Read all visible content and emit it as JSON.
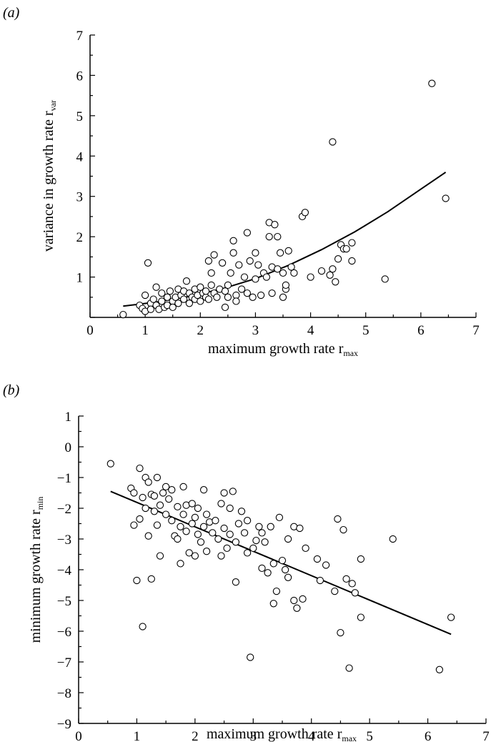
{
  "chart_data": [
    {
      "type": "scatter",
      "panel_label": "(a)",
      "xlabel": "maximum growth rate r",
      "xlabel_sub": "max",
      "ylabel": "variance in growth rate r",
      "ylabel_sub": "var",
      "xlim": [
        0,
        7
      ],
      "ylim": [
        0,
        7
      ],
      "x_ticks": [
        "0",
        "1",
        "2",
        "3",
        "4",
        "5",
        "6",
        "7"
      ],
      "y_ticks": [
        "1",
        "2",
        "3",
        "4",
        "5",
        "6",
        "7"
      ],
      "grid": false,
      "fit_line": {
        "x": [
          0.6,
          1.2,
          1.8,
          2.4,
          3.0,
          3.6,
          4.2,
          4.8,
          5.4,
          6.0,
          6.45
        ],
        "y": [
          0.28,
          0.38,
          0.52,
          0.71,
          0.96,
          1.29,
          1.68,
          2.12,
          2.62,
          3.18,
          3.6
        ]
      },
      "points": [
        [
          0.6,
          0.07
        ],
        [
          0.9,
          0.3
        ],
        [
          0.95,
          0.22
        ],
        [
          1.0,
          0.55
        ],
        [
          1.0,
          0.15
        ],
        [
          1.05,
          1.35
        ],
        [
          1.1,
          0.35
        ],
        [
          1.1,
          0.2
        ],
        [
          1.15,
          0.45
        ],
        [
          1.2,
          0.3
        ],
        [
          1.2,
          0.75
        ],
        [
          1.25,
          0.2
        ],
        [
          1.3,
          0.6
        ],
        [
          1.3,
          0.4
        ],
        [
          1.35,
          0.25
        ],
        [
          1.4,
          0.5
        ],
        [
          1.4,
          0.3
        ],
        [
          1.45,
          0.65
        ],
        [
          1.5,
          0.4
        ],
        [
          1.5,
          0.25
        ],
        [
          1.55,
          0.5
        ],
        [
          1.6,
          0.7
        ],
        [
          1.6,
          0.35
        ],
        [
          1.65,
          0.55
        ],
        [
          1.7,
          0.45
        ],
        [
          1.7,
          0.65
        ],
        [
          1.75,
          0.9
        ],
        [
          1.8,
          0.35
        ],
        [
          1.8,
          0.6
        ],
        [
          1.85,
          0.5
        ],
        [
          1.9,
          0.7
        ],
        [
          1.9,
          0.45
        ],
        [
          1.95,
          0.55
        ],
        [
          2.0,
          0.75
        ],
        [
          2.0,
          0.4
        ],
        [
          2.05,
          0.6
        ],
        [
          2.1,
          0.5
        ],
        [
          2.1,
          0.65
        ],
        [
          2.15,
          1.4
        ],
        [
          2.15,
          0.45
        ],
        [
          2.2,
          0.8
        ],
        [
          2.2,
          1.1
        ],
        [
          2.25,
          1.55
        ],
        [
          2.25,
          0.6
        ],
        [
          2.3,
          0.5
        ],
        [
          2.35,
          0.7
        ],
        [
          2.4,
          1.35
        ],
        [
          2.45,
          0.25
        ],
        [
          2.45,
          0.65
        ],
        [
          2.5,
          0.5
        ],
        [
          2.5,
          0.8
        ],
        [
          2.55,
          1.1
        ],
        [
          2.6,
          1.6
        ],
        [
          2.6,
          1.9
        ],
        [
          2.65,
          0.55
        ],
        [
          2.65,
          0.4
        ],
        [
          2.7,
          1.3
        ],
        [
          2.75,
          0.7
        ],
        [
          2.8,
          1.0
        ],
        [
          2.85,
          2.1
        ],
        [
          2.85,
          0.6
        ],
        [
          2.9,
          1.4
        ],
        [
          2.95,
          0.5
        ],
        [
          3.0,
          1.6
        ],
        [
          3.0,
          0.95
        ],
        [
          3.05,
          1.3
        ],
        [
          3.1,
          0.55
        ],
        [
          3.15,
          1.1
        ],
        [
          3.2,
          1.0
        ],
        [
          3.25,
          2.35
        ],
        [
          3.25,
          2.0
        ],
        [
          3.3,
          1.25
        ],
        [
          3.3,
          0.6
        ],
        [
          3.35,
          2.3
        ],
        [
          3.4,
          2.0
        ],
        [
          3.4,
          1.2
        ],
        [
          3.45,
          1.6
        ],
        [
          3.5,
          0.5
        ],
        [
          3.5,
          1.1
        ],
        [
          3.55,
          0.7
        ],
        [
          3.55,
          0.8
        ],
        [
          3.6,
          1.65
        ],
        [
          3.65,
          1.25
        ],
        [
          3.7,
          1.1
        ],
        [
          3.85,
          2.5
        ],
        [
          3.9,
          2.6
        ],
        [
          4.0,
          1.0
        ],
        [
          4.2,
          1.15
        ],
        [
          4.35,
          1.05
        ],
        [
          4.4,
          1.2
        ],
        [
          4.4,
          4.35
        ],
        [
          4.45,
          0.88
        ],
        [
          4.5,
          1.45
        ],
        [
          4.55,
          1.8
        ],
        [
          4.6,
          1.7
        ],
        [
          4.65,
          1.7
        ],
        [
          4.75,
          1.85
        ],
        [
          4.75,
          1.4
        ],
        [
          5.35,
          0.95
        ],
        [
          6.2,
          5.8
        ],
        [
          6.45,
          2.95
        ]
      ]
    },
    {
      "type": "scatter",
      "panel_label": "(b)",
      "xlabel": "maximum growth rate r",
      "xlabel_sub": "max",
      "ylabel": "minimum growth rate r",
      "ylabel_sub": "min",
      "xlim": [
        0,
        7
      ],
      "ylim": [
        -9,
        1
      ],
      "x_ticks": [
        "0",
        "1",
        "2",
        "3",
        "4",
        "5",
        "6",
        "7"
      ],
      "y_ticks": [
        "−9",
        "−8",
        "−7",
        "−6",
        "−5",
        "−4",
        "−3",
        "−2",
        "−1",
        "0",
        "1"
      ],
      "grid": false,
      "fit_line": {
        "x": [
          0.55,
          6.4
        ],
        "y": [
          -1.45,
          -6.1
        ]
      },
      "points": [
        [
          0.55,
          -0.55
        ],
        [
          0.9,
          -1.35
        ],
        [
          0.95,
          -2.55
        ],
        [
          0.95,
          -1.5
        ],
        [
          1.0,
          -4.35
        ],
        [
          1.05,
          -0.7
        ],
        [
          1.05,
          -2.35
        ],
        [
          1.1,
          -5.85
        ],
        [
          1.1,
          -1.65
        ],
        [
          1.15,
          -1.0
        ],
        [
          1.15,
          -2.0
        ],
        [
          1.2,
          -2.9
        ],
        [
          1.2,
          -1.15
        ],
        [
          1.25,
          -1.55
        ],
        [
          1.25,
          -4.3
        ],
        [
          1.3,
          -2.1
        ],
        [
          1.3,
          -1.6
        ],
        [
          1.35,
          -1.0
        ],
        [
          1.35,
          -2.55
        ],
        [
          1.4,
          -3.55
        ],
        [
          1.4,
          -1.9
        ],
        [
          1.45,
          -1.5
        ],
        [
          1.5,
          -1.3
        ],
        [
          1.5,
          -2.2
        ],
        [
          1.55,
          -1.7
        ],
        [
          1.6,
          -2.4
        ],
        [
          1.6,
          -1.4
        ],
        [
          1.65,
          -2.9
        ],
        [
          1.7,
          -1.95
        ],
        [
          1.7,
          -3.0
        ],
        [
          1.75,
          -3.8
        ],
        [
          1.75,
          -2.6
        ],
        [
          1.8,
          -1.3
        ],
        [
          1.8,
          -2.2
        ],
        [
          1.85,
          -2.75
        ],
        [
          1.85,
          -1.9
        ],
        [
          1.9,
          -3.45
        ],
        [
          1.95,
          -2.5
        ],
        [
          1.95,
          -1.85
        ],
        [
          2.0,
          -3.55
        ],
        [
          2.0,
          -2.3
        ],
        [
          2.05,
          -2.85
        ],
        [
          2.05,
          -2.0
        ],
        [
          2.1,
          -3.1
        ],
        [
          2.15,
          -2.6
        ],
        [
          2.15,
          -1.4
        ],
        [
          2.2,
          -3.4
        ],
        [
          2.2,
          -2.2
        ],
        [
          2.25,
          -2.45
        ],
        [
          2.3,
          -2.8
        ],
        [
          2.35,
          -2.4
        ],
        [
          2.4,
          -3.0
        ],
        [
          2.45,
          -1.85
        ],
        [
          2.45,
          -3.55
        ],
        [
          2.5,
          -2.65
        ],
        [
          2.5,
          -1.5
        ],
        [
          2.55,
          -3.3
        ],
        [
          2.6,
          -2.0
        ],
        [
          2.6,
          -2.85
        ],
        [
          2.65,
          -1.45
        ],
        [
          2.7,
          -4.4
        ],
        [
          2.7,
          -3.1
        ],
        [
          2.75,
          -2.5
        ],
        [
          2.8,
          -2.1
        ],
        [
          2.85,
          -2.8
        ],
        [
          2.9,
          -3.45
        ],
        [
          2.9,
          -2.4
        ],
        [
          2.95,
          -6.85
        ],
        [
          3.0,
          -3.3
        ],
        [
          3.05,
          -3.05
        ],
        [
          3.1,
          -2.6
        ],
        [
          3.15,
          -3.95
        ],
        [
          3.15,
          -2.8
        ],
        [
          3.2,
          -3.1
        ],
        [
          3.25,
          -4.1
        ],
        [
          3.3,
          -2.6
        ],
        [
          3.35,
          -5.1
        ],
        [
          3.35,
          -3.8
        ],
        [
          3.4,
          -4.7
        ],
        [
          3.45,
          -2.3
        ],
        [
          3.5,
          -3.7
        ],
        [
          3.55,
          -4.0
        ],
        [
          3.6,
          -4.25
        ],
        [
          3.6,
          -3.0
        ],
        [
          3.7,
          -5.0
        ],
        [
          3.7,
          -2.6
        ],
        [
          3.75,
          -5.25
        ],
        [
          3.8,
          -2.65
        ],
        [
          3.85,
          -4.95
        ],
        [
          3.9,
          -3.3
        ],
        [
          4.1,
          -3.65
        ],
        [
          4.15,
          -4.35
        ],
        [
          4.25,
          -3.85
        ],
        [
          4.4,
          -4.7
        ],
        [
          4.45,
          -2.35
        ],
        [
          4.5,
          -6.05
        ],
        [
          4.55,
          -2.7
        ],
        [
          4.6,
          -4.3
        ],
        [
          4.65,
          -7.2
        ],
        [
          4.7,
          -4.45
        ],
        [
          4.75,
          -4.75
        ],
        [
          4.85,
          -5.55
        ],
        [
          4.85,
          -3.65
        ],
        [
          5.4,
          -3.0
        ],
        [
          6.2,
          -7.25
        ],
        [
          6.4,
          -5.55
        ]
      ]
    }
  ]
}
